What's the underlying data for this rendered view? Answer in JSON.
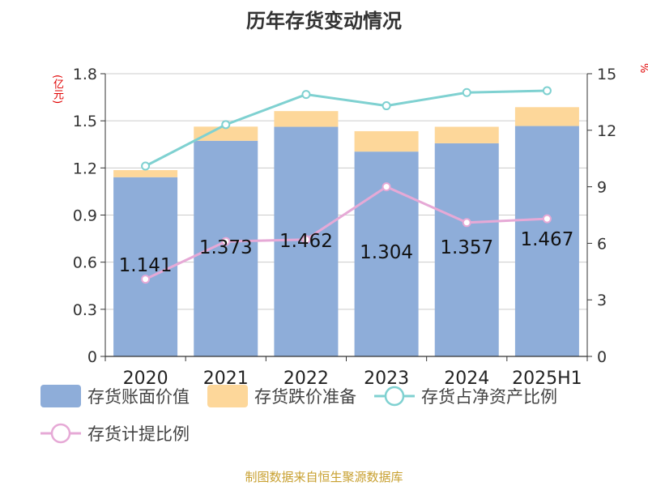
{
  "title": "历年存货变动情况",
  "footer": "制图数据来自恒生聚源数据库",
  "unit_left": "(亿元)",
  "unit_right": "%",
  "colors": {
    "book_value": "#8eadd9",
    "reserve": "#fdd79a",
    "net_asset_ratio": "#7fd1d1",
    "provision_ratio": "#e6a9d6",
    "axis_unit": "#e00000",
    "footer": "#c8a030"
  },
  "legend": [
    {
      "label": "存货账面价值",
      "symbol": "rect-blue"
    },
    {
      "label": "存货跌价准备",
      "symbol": "rect-yellow"
    },
    {
      "label": "存货占净资产比例",
      "symbol": "line-circle-teal"
    },
    {
      "label": "存货计提比例",
      "symbol": "line-circle-pink"
    }
  ],
  "chart_data": {
    "type": "bar",
    "categories": [
      "2020",
      "2021",
      "2022",
      "2023",
      "2024",
      "2025H1"
    ],
    "left_axis": {
      "ylim": [
        0,
        1.8
      ],
      "ticks": [
        "0",
        "0.3",
        "0.6",
        "0.9",
        "1.2",
        "1.5",
        "1.8"
      ]
    },
    "right_axis": {
      "ylim": [
        0,
        15
      ],
      "ticks": [
        "0",
        "3",
        "6",
        "9",
        "12",
        "15"
      ]
    },
    "series": [
      {
        "name": "存货账面价值",
        "kind": "bar-stack",
        "axis": "left",
        "values": [
          1.141,
          1.373,
          1.462,
          1.304,
          1.357,
          1.467
        ],
        "labels": [
          "1.141",
          "1.373",
          "1.462",
          "1.304",
          "1.357",
          "1.467"
        ]
      },
      {
        "name": "存货跌价准备",
        "kind": "bar-stack",
        "axis": "left",
        "values": [
          0.045,
          0.09,
          0.1,
          0.13,
          0.105,
          0.12
        ]
      },
      {
        "name": "存货占净资产比例",
        "kind": "line",
        "axis": "right",
        "values": [
          10.1,
          12.3,
          13.9,
          13.3,
          14.0,
          14.1
        ]
      },
      {
        "name": "存货计提比例",
        "kind": "line",
        "axis": "right",
        "values": [
          4.1,
          6.1,
          6.2,
          9.0,
          7.1,
          7.3
        ]
      }
    ],
    "grid": "horizontal",
    "legend_position": "bottom"
  }
}
